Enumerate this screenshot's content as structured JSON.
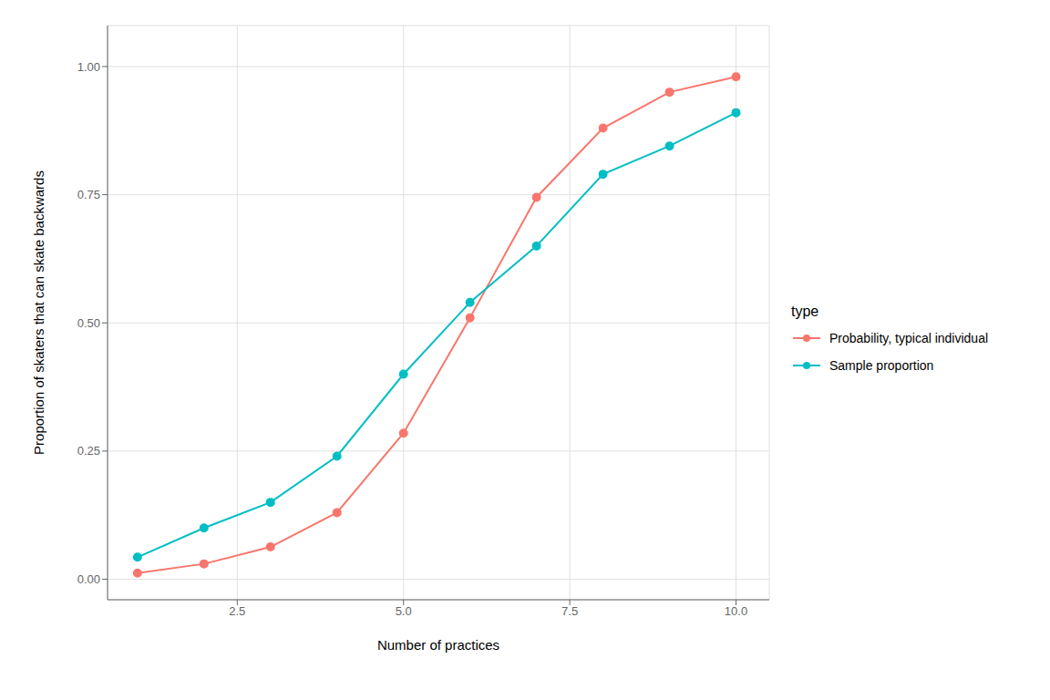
{
  "chart_data": {
    "type": "line",
    "xlabel": "Number of practices",
    "ylabel": "Proportion of skaters that can skate backwards",
    "x": [
      1,
      2,
      3,
      4,
      5,
      6,
      7,
      8,
      9,
      10
    ],
    "series": [
      {
        "name": "Probability, typical individual",
        "color": "#F8766D",
        "marker": "circle",
        "values": [
          0.012,
          0.03,
          0.063,
          0.13,
          0.285,
          0.51,
          0.745,
          0.88,
          0.95,
          0.98
        ]
      },
      {
        "name": "Sample proportion",
        "color": "#00BFC4",
        "marker": "circle",
        "values": [
          0.043,
          0.1,
          0.15,
          0.24,
          0.4,
          0.54,
          0.65,
          0.79,
          0.845,
          0.91
        ]
      }
    ],
    "xlim": [
      0.55,
      10.5
    ],
    "xticks": [
      2.5,
      {
        "value": 5.0,
        "label": "5.0"
      },
      7.5,
      {
        "value": 10.0,
        "label": "10.0"
      }
    ],
    "ylim": [
      -0.04,
      1.08
    ],
    "yticks": [
      {
        "value": 0.0,
        "label": "0.00"
      },
      {
        "value": 0.25,
        "label": "0.25"
      },
      {
        "value": 0.5,
        "label": "0.50"
      },
      {
        "value": 0.75,
        "label": "0.75"
      },
      {
        "value": 1.0,
        "label": "1.00"
      }
    ],
    "grid": true,
    "legend": "right",
    "legend_title": "type"
  }
}
